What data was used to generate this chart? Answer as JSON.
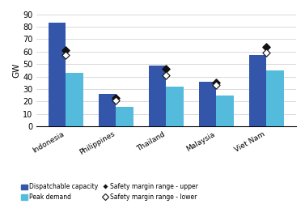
{
  "categories": [
    "Indonesia",
    "Philippines",
    "Thailand",
    "Malaysia",
    "Viet Nam"
  ],
  "dispatchable_capacity": [
    83,
    26,
    49,
    36,
    57
  ],
  "peak_demand": [
    43,
    16,
    32,
    25,
    45
  ],
  "safety_upper": [
    61,
    23,
    46,
    35,
    64
  ],
  "safety_lower": [
    57,
    21,
    41,
    33,
    59
  ],
  "bar_color_dispatch": "#3355AA",
  "bar_color_peak": "#55BBDD",
  "marker_upper_color": "#111111",
  "ylabel": "GW",
  "ylim": [
    0,
    90
  ],
  "yticks": [
    0,
    10,
    20,
    30,
    40,
    50,
    60,
    70,
    80,
    90
  ],
  "legend_dispatch": "Dispatchable capacity",
  "legend_peak": "Peak demand",
  "legend_upper": "Safety margin range - upper",
  "legend_lower": "Safety margin range - lower",
  "bar_width": 0.35,
  "background_color": "#ffffff",
  "figwidth": 3.77,
  "figheight": 2.52,
  "dpi": 100
}
